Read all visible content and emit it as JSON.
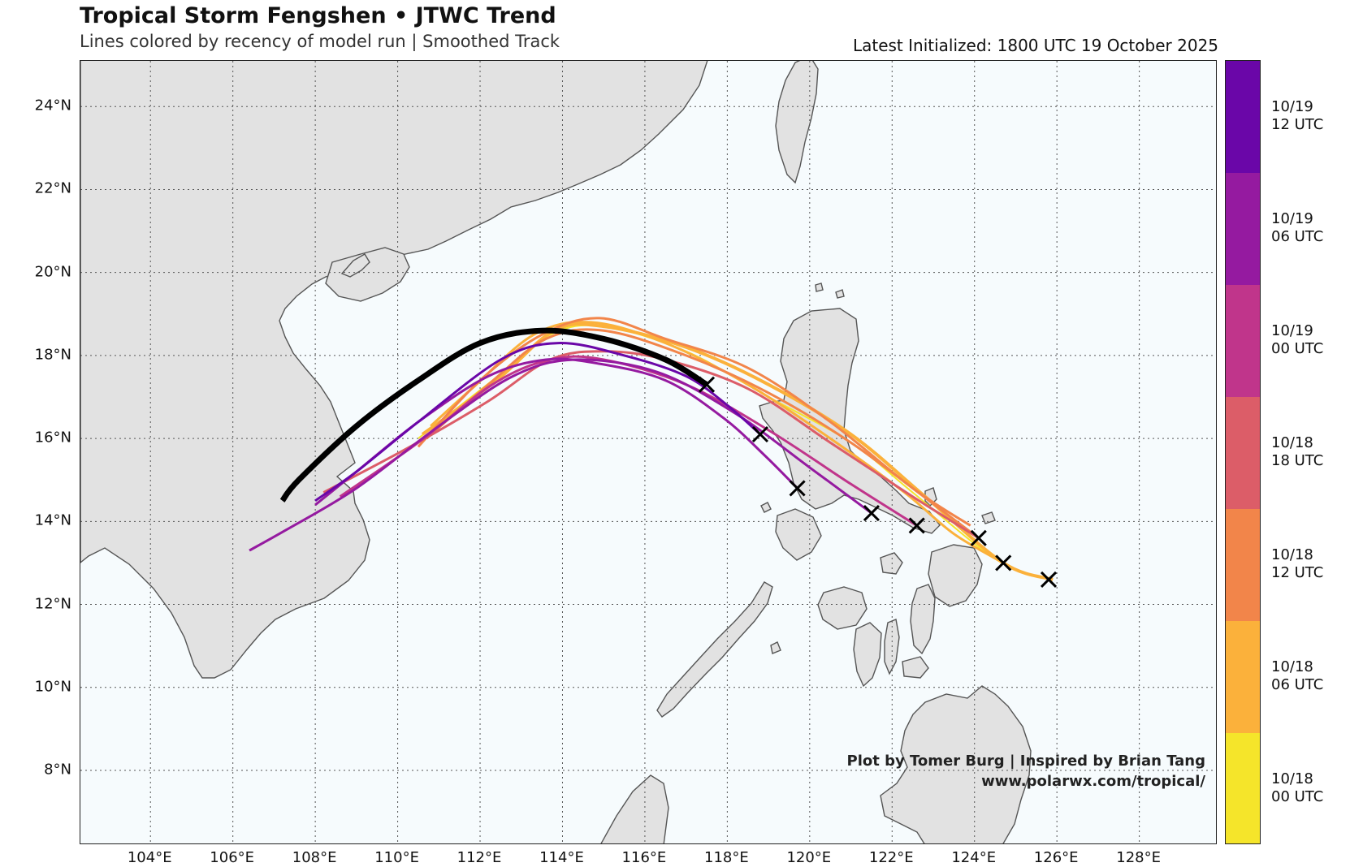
{
  "header": {
    "title": "Tropical Storm Fengshen • JTWC Trend",
    "subtitle": "Lines colored by recency of model run | Smoothed Track",
    "latest": "Latest Initialized: 1800 UTC 19 October 2025"
  },
  "map": {
    "lon_range": [
      102.3,
      129.9
    ],
    "lat_range": [
      6.2,
      25.1
    ],
    "ocean_color": "#f6fbfd",
    "land_color": "#e2e2e2",
    "coast_color": "#555555",
    "grid": true,
    "lat_ticks": [
      {
        "value": 24,
        "label": "24°N"
      },
      {
        "value": 22,
        "label": "22°N"
      },
      {
        "value": 20,
        "label": "20°N"
      },
      {
        "value": 18,
        "label": "18°N"
      },
      {
        "value": 16,
        "label": "16°N"
      },
      {
        "value": 14,
        "label": "14°N"
      },
      {
        "value": 12,
        "label": "12°N"
      },
      {
        "value": 10,
        "label": "10°N"
      },
      {
        "value": 8,
        "label": "8°N"
      }
    ],
    "lon_ticks": [
      {
        "value": 104,
        "label": "104°E"
      },
      {
        "value": 106,
        "label": "106°E"
      },
      {
        "value": 108,
        "label": "108°E"
      },
      {
        "value": 110,
        "label": "110°E"
      },
      {
        "value": 112,
        "label": "112°E"
      },
      {
        "value": 114,
        "label": "114°E"
      },
      {
        "value": 116,
        "label": "116°E"
      },
      {
        "value": 118,
        "label": "118°E"
      },
      {
        "value": 120,
        "label": "120°E"
      },
      {
        "value": 122,
        "label": "122°E"
      },
      {
        "value": 124,
        "label": "124°E"
      },
      {
        "value": 126,
        "label": "126°E"
      },
      {
        "value": 128,
        "label": "128°E"
      }
    ]
  },
  "chart_data": {
    "type": "line",
    "tracks": [
      {
        "run": "10/18 00 UTC",
        "color": "#f5e52a",
        "width": 2,
        "points": [
          [
            125.8,
            12.6
          ],
          [
            124.5,
            13.1
          ],
          [
            122.5,
            14.7
          ],
          [
            121,
            15.9
          ],
          [
            119,
            17
          ],
          [
            117,
            18.1
          ],
          [
            115,
            18.7
          ],
          [
            113.7,
            18.5
          ],
          [
            112.3,
            17.4
          ],
          [
            110.5,
            16.0
          ]
        ]
      },
      {
        "run": "10/18 06 UTC",
        "color": "#fbb13b",
        "width": 4,
        "points": [
          [
            125.9,
            12.6
          ],
          [
            124.7,
            13.0
          ],
          [
            122.8,
            14.6
          ],
          [
            121,
            16.1
          ],
          [
            119,
            17.3
          ],
          [
            117,
            18.2
          ],
          [
            115,
            18.7
          ],
          [
            113.8,
            18.6
          ],
          [
            112.4,
            17.4
          ],
          [
            110.6,
            16.1
          ]
        ]
      },
      {
        "run": "10/18 06 UTC",
        "color": "#fbb13b",
        "width": 3,
        "points": [
          [
            124.7,
            13.0
          ],
          [
            123.5,
            13.7
          ],
          [
            122.3,
            14.7
          ],
          [
            120.5,
            16.0
          ],
          [
            118.5,
            17.3
          ],
          [
            116.5,
            18.3
          ],
          [
            114.7,
            18.8
          ],
          [
            113.3,
            18.5
          ],
          [
            111.8,
            17.2
          ],
          [
            110.8,
            16.3
          ]
        ]
      },
      {
        "run": "10/18 12 UTC",
        "color": "#f2854a",
        "width": 3,
        "points": [
          [
            123.9,
            13.9
          ],
          [
            122.5,
            14.8
          ],
          [
            120.5,
            16.4
          ],
          [
            118.5,
            17.7
          ],
          [
            116.5,
            18.4
          ],
          [
            114.9,
            18.9
          ],
          [
            113.5,
            18.5
          ],
          [
            112,
            17.4
          ],
          [
            110.5,
            15.8
          ]
        ]
      },
      {
        "run": "10/18 12 UTC",
        "color": "#f2854a",
        "width": 3,
        "points": [
          [
            124.1,
            13.6
          ],
          [
            122.9,
            14.5
          ],
          [
            121,
            15.9
          ],
          [
            119,
            17.1
          ],
          [
            117,
            18.0
          ],
          [
            115,
            18.6
          ],
          [
            113.6,
            18.4
          ],
          [
            112.2,
            17.3
          ],
          [
            110.7,
            16.0
          ]
        ]
      },
      {
        "run": "10/18 18 UTC",
        "color": "#dc5d68",
        "width": 3,
        "points": [
          [
            124.1,
            13.6
          ],
          [
            122.5,
            14.6
          ],
          [
            120.5,
            15.9
          ],
          [
            118.5,
            17.2
          ],
          [
            116.5,
            17.9
          ],
          [
            115,
            18.1
          ],
          [
            113.7,
            17.9
          ],
          [
            112.2,
            16.9
          ],
          [
            110.3,
            15.8
          ],
          [
            108.2,
            14.7
          ]
        ]
      },
      {
        "run": "10/19 00 UTC",
        "color": "#c0358b",
        "width": 3,
        "points": [
          [
            122.6,
            13.9
          ],
          [
            121,
            14.9
          ],
          [
            119,
            16.2
          ],
          [
            117,
            17.3
          ],
          [
            115,
            17.9
          ],
          [
            113.7,
            17.9
          ],
          [
            112.3,
            17.3
          ],
          [
            110.5,
            15.9
          ],
          [
            108.6,
            14.6
          ]
        ]
      },
      {
        "run": "10/19 06 UTC",
        "color": "#951aa0",
        "width": 3,
        "points": [
          [
            121.5,
            14.2
          ],
          [
            120,
            15.3
          ],
          [
            118.2,
            16.6
          ],
          [
            116.3,
            17.6
          ],
          [
            114.3,
            17.9
          ],
          [
            112.8,
            17.5
          ],
          [
            111,
            16.3
          ],
          [
            109,
            14.8
          ],
          [
            107.3,
            13.8
          ],
          [
            106.4,
            13.3
          ]
        ]
      },
      {
        "run": "10/19 06 UTC",
        "color": "#951aa0",
        "width": 3,
        "points": [
          [
            119.7,
            14.8
          ],
          [
            118.9,
            15.6
          ],
          [
            117.9,
            16.5
          ],
          [
            116.5,
            17.4
          ],
          [
            114.9,
            17.8
          ],
          [
            113.6,
            17.9
          ],
          [
            112.2,
            17.5
          ],
          [
            110.5,
            16.4
          ],
          [
            109,
            15.2
          ],
          [
            108.0,
            14.4
          ]
        ]
      },
      {
        "run": "10/19 12 UTC",
        "color": "#6a06a8",
        "width": 3,
        "points": [
          [
            118.8,
            16.1
          ],
          [
            118,
            16.8
          ],
          [
            117,
            17.5
          ],
          [
            115.5,
            18.0
          ],
          [
            113.9,
            18.3
          ],
          [
            112.5,
            17.9
          ],
          [
            110.5,
            16.4
          ],
          [
            109,
            15.2
          ],
          [
            108.0,
            14.5
          ]
        ]
      },
      {
        "run": "10/19 18 UTC",
        "color": "#000000",
        "width": 7,
        "points": [
          [
            117.5,
            17.3
          ],
          [
            116.5,
            17.9
          ],
          [
            115,
            18.4
          ],
          [
            113.5,
            18.6
          ],
          [
            112,
            18.3
          ],
          [
            110.5,
            17.4
          ],
          [
            109,
            16.3
          ],
          [
            107.6,
            15.0
          ],
          [
            107.2,
            14.5
          ]
        ]
      }
    ],
    "markers": [
      {
        "lon": 117.5,
        "lat": 17.3
      },
      {
        "lon": 118.8,
        "lat": 16.1
      },
      {
        "lon": 119.7,
        "lat": 14.8
      },
      {
        "lon": 121.5,
        "lat": 14.2
      },
      {
        "lon": 122.6,
        "lat": 13.9
      },
      {
        "lon": 124.1,
        "lat": 13.6
      },
      {
        "lon": 124.7,
        "lat": 13.0
      },
      {
        "lon": 125.8,
        "lat": 12.6
      }
    ]
  },
  "colorbar": [
    {
      "date": "10/19",
      "time": "12 UTC",
      "color": "#6a06a8"
    },
    {
      "date": "10/19",
      "time": "06 UTC",
      "color": "#951aa0"
    },
    {
      "date": "10/19",
      "time": "00 UTC",
      "color": "#c0358b"
    },
    {
      "date": "10/18",
      "time": "18 UTC",
      "color": "#dc5d68"
    },
    {
      "date": "10/18",
      "time": "12 UTC",
      "color": "#f2854a"
    },
    {
      "date": "10/18",
      "time": "06 UTC",
      "color": "#fbb13b"
    },
    {
      "date": "10/18",
      "time": "00 UTC",
      "color": "#f5e52a"
    }
  ],
  "credits": {
    "line1": "Plot by Tomer Burg | Inspired by Brian Tang",
    "line2": "www.polarwx.com/tropical/"
  }
}
